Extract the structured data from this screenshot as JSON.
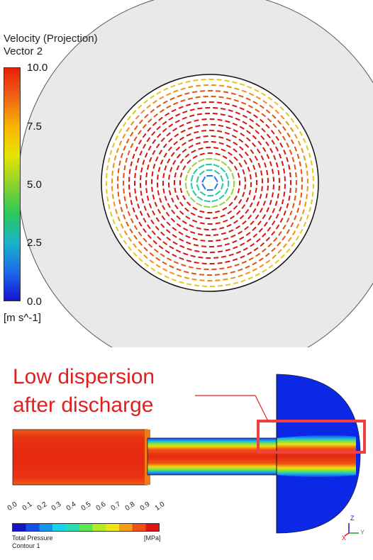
{
  "top_view": {
    "legend_title": "Velocity (Projection)",
    "legend_subtitle": "Vector 2",
    "colorbar_ticks": [
      "10.0",
      "7.5",
      "5.0",
      "2.5",
      "0.0"
    ],
    "colorbar_unit": "[m s^-1]",
    "colorbar_colors": [
      "#e8200a",
      "#f06414",
      "#f8b400",
      "#e8e400",
      "#8cd32c",
      "#2cc85a",
      "#18b4c8",
      "#1c6ce8",
      "#1414d0"
    ]
  },
  "annotation": {
    "line1": "Low dispersion",
    "line2": "after discharge",
    "color": "#e02020"
  },
  "pressure_legend": {
    "ticks": [
      "0.0",
      "0.1",
      "0.2",
      "0.3",
      "0.4",
      "0.5",
      "0.6",
      "0.7",
      "0.8",
      "0.9",
      "1.0"
    ],
    "variable": "Total Pressure",
    "contour_name": "Contour 1",
    "unit": "[MPa]",
    "colors": [
      "#1414c8",
      "#1450e6",
      "#1496f0",
      "#14d2f0",
      "#28dcb4",
      "#5ae650",
      "#b4eb1e",
      "#f0e614",
      "#f5a014",
      "#f05014",
      "#e01414"
    ]
  },
  "axis_triad": {
    "z_label": "Z",
    "x_label": "X",
    "y_label": "Y"
  }
}
